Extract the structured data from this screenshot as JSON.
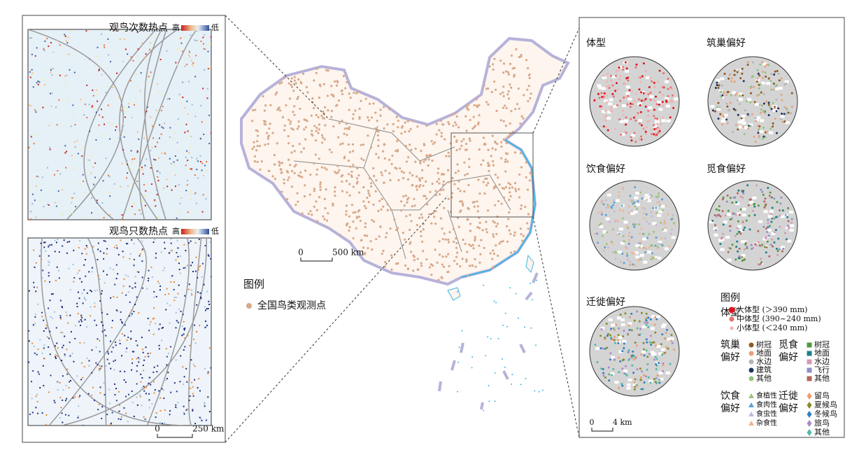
{
  "left_panels": [
    {
      "title": "观鸟次数热点",
      "legend_high": "高",
      "legend_low": "低"
    },
    {
      "title": "观鸟只数热点",
      "legend_high": "高",
      "legend_low": "低"
    }
  ],
  "left_scale": [
    "0",
    "250 km"
  ],
  "center": {
    "legend_title": "图例",
    "legend_item": "全国鸟类观测点",
    "scale": [
      "0",
      "500 km"
    ]
  },
  "right_panels": [
    "体型",
    "筑巢偏好",
    "饮食偏好",
    "觅食偏好",
    "迁徙偏好"
  ],
  "right_legend": {
    "title": "图例",
    "groups": [
      {
        "title_lines": [
          "体型"
        ],
        "marker": "circle",
        "items": [
          {
            "label": "大体型 (＞390 mm)",
            "color": "#e0141c"
          },
          {
            "label": "中体型 (390~240 mm)",
            "color": "#e86f6f"
          },
          {
            "label": "小体型 (＜240 mm)",
            "color": "#f2b0b0"
          }
        ]
      },
      {
        "title_lines": [
          "筑巢",
          "偏好"
        ],
        "marker": "circle",
        "items": [
          {
            "label": "树冠",
            "color": "#8c5a1e"
          },
          {
            "label": "地面",
            "color": "#e8a07a"
          },
          {
            "label": "水边",
            "color": "#b4b4b4"
          },
          {
            "label": "建筑",
            "color": "#1f3560"
          },
          {
            "label": "其他",
            "color": "#8fc47a"
          }
        ]
      },
      {
        "title_lines": [
          "觅食",
          "偏好"
        ],
        "marker": "square",
        "items": [
          {
            "label": "树冠",
            "color": "#4f9a3a"
          },
          {
            "label": "地面",
            "color": "#1c7f86"
          },
          {
            "label": "水边",
            "color": "#d59ab5"
          },
          {
            "label": "飞行",
            "color": "#8e8fc9"
          },
          {
            "label": "其他",
            "color": "#b5675a"
          }
        ]
      },
      {
        "title_lines": [
          "饮食",
          "偏好"
        ],
        "marker": "triangle",
        "items": [
          {
            "label": "食植性",
            "color": "#9dc37a"
          },
          {
            "label": "食肉性",
            "color": "#5aa2d6"
          },
          {
            "label": "食虫性",
            "color": "#c9b7da"
          },
          {
            "label": "杂食性",
            "color": "#f2b48e"
          }
        ]
      },
      {
        "title_lines": [
          "迁徙",
          "偏好"
        ],
        "marker": "diamond",
        "items": [
          {
            "label": "留鸟",
            "color": "#f19a6c"
          },
          {
            "label": "夏候鸟",
            "color": "#8a8a2a"
          },
          {
            "label": "冬候鸟",
            "color": "#2f7fc2"
          },
          {
            "label": "旅鸟",
            "color": "#a98cc7"
          },
          {
            "label": "其他",
            "color": "#4fb9a8"
          }
        ]
      }
    ]
  },
  "right_scale": [
    "0",
    "4 km"
  ]
}
